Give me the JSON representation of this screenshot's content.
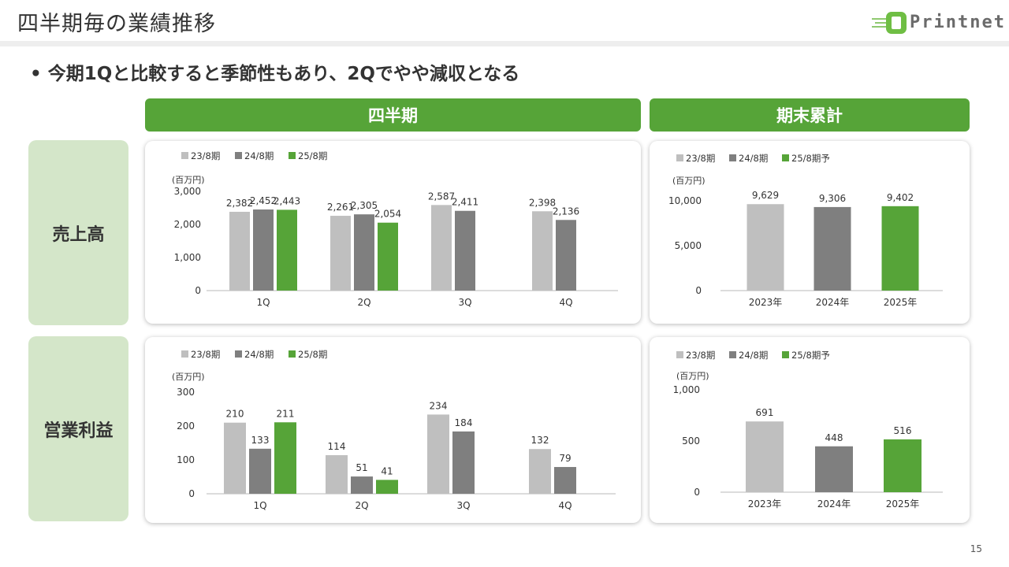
{
  "header": {
    "title": "四半期毎の業績推移",
    "logo_text": "Printnet"
  },
  "subtitle": "• 今期1Qと比較すると季節性もあり、2Qでやや減収となる",
  "column_headers": {
    "quarterly": "四半期",
    "cumulative": "期末累計"
  },
  "row_labels": {
    "sales": "売上高",
    "op_income": "営業利益"
  },
  "page_number": "15",
  "colors": {
    "s23": "#bfbfbf",
    "s24": "#7f7f7f",
    "s25": "#56a438",
    "header_green": "#56a438",
    "label_bg": "#d4e6c9"
  },
  "chart_data": [
    {
      "type": "bar",
      "unit_label": "(百万円)",
      "categories": [
        "1Q",
        "2Q",
        "3Q",
        "4Q"
      ],
      "ylim": [
        0,
        3000
      ],
      "yticks": [
        "0",
        "1,000",
        "2,000",
        "3,000"
      ],
      "legend": "top-left",
      "series": [
        {
          "name": "23/8期",
          "values": [
            2382,
            2261,
            2587,
            2398
          ],
          "labels": [
            "2,382",
            "2,261",
            "2,587",
            "2,398"
          ]
        },
        {
          "name": "24/8期",
          "values": [
            2452,
            2305,
            2411,
            2136
          ],
          "labels": [
            "2,452",
            "2,305",
            "2,411",
            "2,136"
          ]
        },
        {
          "name": "25/8期",
          "values": [
            2443,
            2054,
            null,
            null
          ],
          "labels": [
            "2,443",
            "2,054",
            "",
            ""
          ]
        }
      ]
    },
    {
      "type": "bar",
      "unit_label": "(百万円)",
      "categories": [
        "2023年",
        "2024年",
        "2025年"
      ],
      "ylim": [
        0,
        10000
      ],
      "yticks": [
        "0",
        "5,000",
        "10,000"
      ],
      "legend": "top-left",
      "series": [
        {
          "name": "23/8期",
          "values": [
            9629,
            null,
            null
          ],
          "labels": [
            "9,629",
            "",
            ""
          ]
        },
        {
          "name": "24/8期",
          "values": [
            null,
            9306,
            null
          ],
          "labels": [
            "",
            "9,306",
            ""
          ]
        },
        {
          "name": "25/8期予",
          "values": [
            null,
            null,
            9402
          ],
          "labels": [
            "",
            "",
            "9,402"
          ]
        }
      ]
    },
    {
      "type": "bar",
      "unit_label": "(百万円)",
      "categories": [
        "1Q",
        "2Q",
        "3Q",
        "4Q"
      ],
      "ylim": [
        0,
        300
      ],
      "yticks": [
        "0",
        "100",
        "200",
        "300"
      ],
      "legend": "top-left",
      "series": [
        {
          "name": "23/8期",
          "values": [
            210,
            114,
            234,
            132
          ],
          "labels": [
            "210",
            "114",
            "234",
            "132"
          ]
        },
        {
          "name": "24/8期",
          "values": [
            133,
            51,
            184,
            79
          ],
          "labels": [
            "133",
            "51",
            "184",
            "79"
          ]
        },
        {
          "name": "25/8期",
          "values": [
            211,
            41,
            null,
            null
          ],
          "labels": [
            "211",
            "41",
            "",
            ""
          ]
        }
      ]
    },
    {
      "type": "bar",
      "unit_label": "(百万円)",
      "categories": [
        "2023年",
        "2024年",
        "2025年"
      ],
      "ylim": [
        0,
        1000
      ],
      "yticks": [
        "0",
        "500",
        "1,000"
      ],
      "legend": "top-left",
      "series": [
        {
          "name": "23/8期",
          "values": [
            691,
            null,
            null
          ],
          "labels": [
            "691",
            "",
            ""
          ]
        },
        {
          "name": "24/8期",
          "values": [
            null,
            448,
            null
          ],
          "labels": [
            "",
            "448",
            ""
          ]
        },
        {
          "name": "25/8期予",
          "values": [
            null,
            null,
            516
          ],
          "labels": [
            "",
            "",
            "516"
          ]
        }
      ]
    }
  ]
}
